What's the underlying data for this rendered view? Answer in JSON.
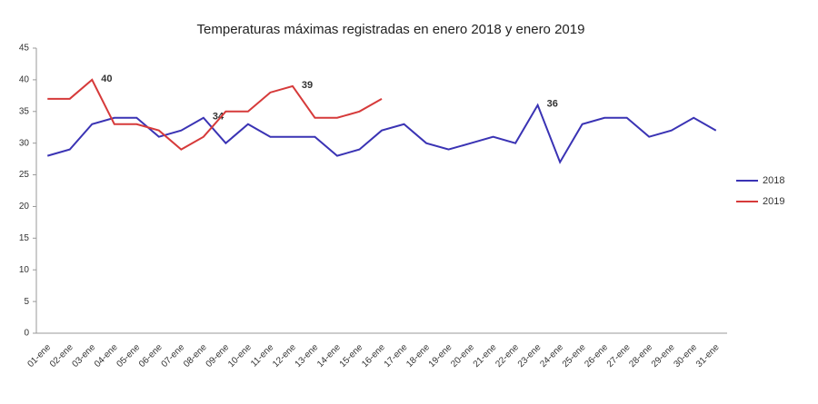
{
  "chart_data": {
    "type": "line",
    "title": "Temperaturas máximas registradas en enero 2018 y enero 2019",
    "categories": [
      "01-ene",
      "02-ene",
      "03-ene",
      "04-ene",
      "05-ene",
      "06-ene",
      "07-ene",
      "08-ene",
      "09-ene",
      "10-ene",
      "11-ene",
      "12-ene",
      "13-ene",
      "14-ene",
      "15-ene",
      "16-ene",
      "17-ene",
      "18-ene",
      "19-ene",
      "20-ene",
      "21-ene",
      "22-ene",
      "23-ene",
      "24-ene",
      "25-ene",
      "26-ene",
      "27-ene",
      "28-ene",
      "29-ene",
      "30-ene",
      "31-ene"
    ],
    "series": [
      {
        "name": "2018",
        "color": "#3a33b4",
        "values": [
          28,
          29,
          33,
          34,
          34,
          31,
          32,
          34,
          30,
          33,
          31,
          31,
          31,
          28,
          29,
          32,
          33,
          30,
          29,
          30,
          31,
          30,
          36,
          27,
          33,
          34,
          34,
          31,
          32,
          34,
          32
        ],
        "value_labels": [
          null,
          null,
          null,
          null,
          null,
          null,
          null,
          "34",
          null,
          null,
          null,
          null,
          null,
          null,
          null,
          null,
          null,
          null,
          null,
          null,
          null,
          null,
          "36",
          null,
          null,
          null,
          null,
          null,
          null,
          null,
          null
        ]
      },
      {
        "name": "2019",
        "color": "#d63a3a",
        "values": [
          37,
          37,
          40,
          33,
          33,
          32,
          29,
          31,
          35,
          35,
          38,
          39,
          34,
          34,
          35,
          37,
          null,
          null,
          null,
          null,
          null,
          null,
          null,
          null,
          null,
          null,
          null,
          null,
          null,
          null,
          null
        ],
        "value_labels": [
          null,
          null,
          "40",
          null,
          null,
          null,
          null,
          null,
          null,
          null,
          null,
          "39",
          null,
          null,
          null,
          null,
          null,
          null,
          null,
          null,
          null,
          null,
          null,
          null,
          null,
          null,
          null,
          null,
          null,
          null,
          null
        ]
      }
    ],
    "ylim": [
      0,
      45
    ],
    "yticks": [
      0,
      5,
      10,
      15,
      20,
      25,
      30,
      35,
      40,
      45
    ],
    "grid": false,
    "legend": "right"
  }
}
